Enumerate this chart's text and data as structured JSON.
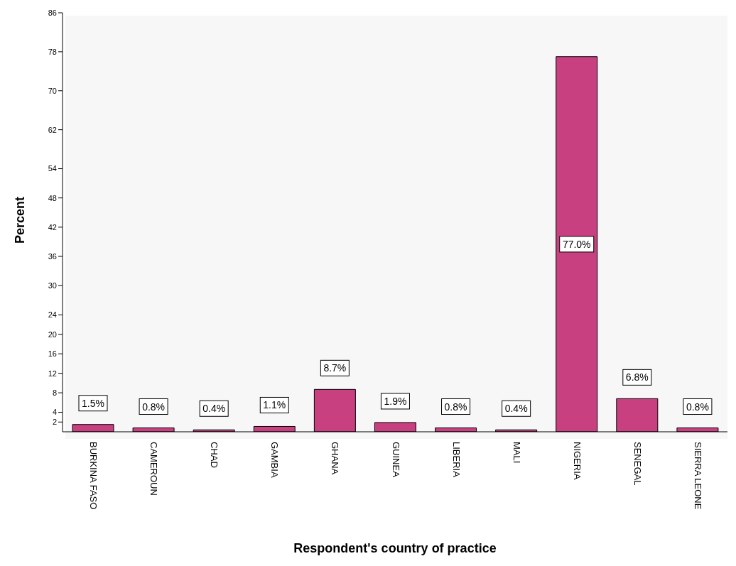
{
  "chart_data": {
    "type": "bar",
    "xlabel": "Respondent's country of practice",
    "ylabel": "Percent",
    "categories": [
      "BURKINA FASO",
      "CAMEROUN",
      "CHAD",
      "GAMBIA",
      "GHANA",
      "GUINEA",
      "LIBERIA",
      "MALI",
      "NIGERIA",
      "SENEGAL",
      "SIERRA LEONE"
    ],
    "values": [
      1.5,
      0.8,
      0.4,
      1.1,
      8.7,
      1.9,
      0.8,
      0.4,
      77.0,
      6.8,
      0.8
    ],
    "value_labels": [
      "1.5%",
      "0.8%",
      "0.4%",
      "1.1%",
      "8.7%",
      "1.9%",
      "0.8%",
      "0.4%",
      "77.0%",
      "6.8%",
      "0.8%"
    ],
    "color": "#c8407f",
    "ylim": [
      0,
      86
    ],
    "yticks": [
      2,
      4,
      8,
      12,
      16,
      20,
      24,
      30,
      36,
      42,
      48,
      54,
      62,
      70,
      78,
      86
    ],
    "grid": false
  }
}
